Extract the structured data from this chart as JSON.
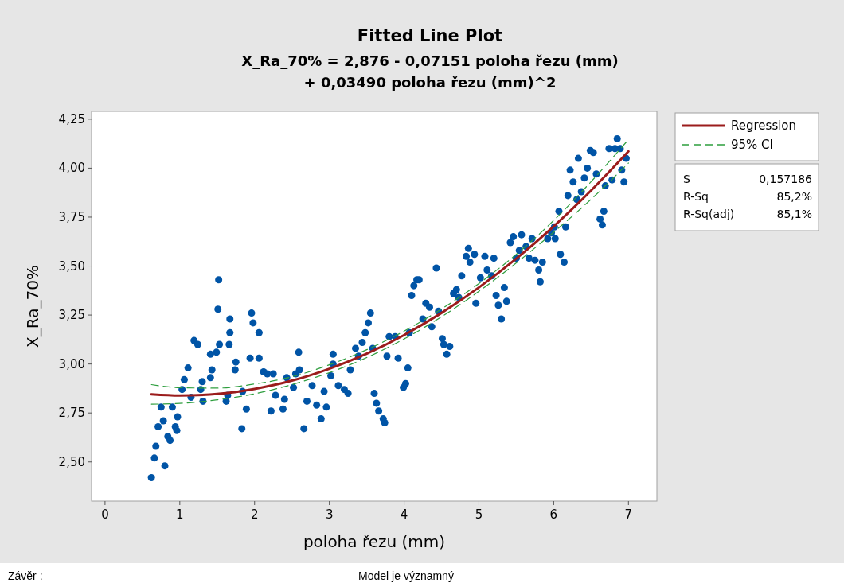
{
  "chart_data": {
    "type": "scatter",
    "title": "Fitted Line Plot",
    "subtitle": "X_Ra_70% = 2,876 - 0,07151 poloha řezu (mm)\n+ 0,03490 poloha řezu (mm)^2",
    "xlabel": "poloha řezu (mm)",
    "ylabel": "X_Ra_70%",
    "xlim": [
      -0.18,
      7.38
    ],
    "ylim": [
      2.3,
      4.29
    ],
    "xticks": [
      0,
      1,
      2,
      3,
      4,
      5,
      6,
      7
    ],
    "yticks": [
      {
        "value": 2.5,
        "label": "2,50"
      },
      {
        "value": 2.75,
        "label": "2,75"
      },
      {
        "value": 3,
        "label": "3,00"
      },
      {
        "value": 3.25,
        "label": "3,25"
      },
      {
        "value": 3.5,
        "label": "3,50"
      },
      {
        "value": 3.75,
        "label": "3,75"
      },
      {
        "value": 4,
        "label": "4,00"
      },
      {
        "value": 4.25,
        "label": "4,25"
      }
    ],
    "grid": false,
    "legend": "top right",
    "marker": "circle",
    "annotations": [
      "S",
      "0,157186",
      "R-Sq",
      "85,2%",
      "R-Sq(adj)",
      "85,1%",
      "Závěr :",
      "Model je významný"
    ],
    "series": [
      {
        "color": "#0054a6",
        "x": [
          0.62,
          0.66,
          0.68,
          0.8,
          0.71,
          0.78,
          0.75,
          0.84,
          0.87,
          0.9,
          0.94,
          0.96,
          0.97,
          1.03,
          1.06,
          1.11,
          1.19,
          1.24,
          1.15,
          1.28,
          1.31,
          1.3,
          1.41,
          1.43,
          1.41,
          1.49,
          1.51,
          1.52,
          1.53,
          1.66,
          1.67,
          1.67,
          1.62,
          1.64,
          1.74,
          1.75,
          1.84,
          1.83,
          1.89,
          1.94,
          1.96,
          1.98,
          2.06,
          2.06,
          2.12,
          2.17,
          2.22,
          2.25,
          2.28,
          2.38,
          2.4,
          2.43,
          2.52,
          2.55,
          2.59,
          2.6,
          2.66,
          2.7,
          2.77,
          2.83,
          2.89,
          2.93,
          2.96,
          3.02,
          3.05,
          3.05,
          3.12,
          3.2,
          3.25,
          3.28,
          3.35,
          3.39,
          3.44,
          3.48,
          3.52,
          3.55,
          3.58,
          3.6,
          3.63,
          3.66,
          3.72,
          3.74,
          3.77,
          3.8,
          3.88,
          3.92,
          3.99,
          4.02,
          4.05,
          4.07,
          4.1,
          4.13,
          4.17,
          4.2,
          4.25,
          4.29,
          4.34,
          4.37,
          4.43,
          4.46,
          4.51,
          4.53,
          4.57,
          4.61,
          4.66,
          4.7,
          4.73,
          4.77,
          4.83,
          4.86,
          4.88,
          4.94,
          4.96,
          5.02,
          5.08,
          5.11,
          5.17,
          5.2,
          5.23,
          5.26,
          5.3,
          5.34,
          5.37,
          5.42,
          5.46,
          5.5,
          5.54,
          5.57,
          5.63,
          5.67,
          5.71,
          5.75,
          5.8,
          5.82,
          5.85,
          5.92,
          5.97,
          6.01,
          6.02,
          6.07,
          6.09,
          6.14,
          6.16,
          6.19,
          6.22,
          6.26,
          6.31,
          6.33,
          6.37,
          6.41,
          6.45,
          6.49,
          6.53,
          6.57,
          6.62,
          6.65,
          6.67,
          6.69,
          6.74,
          6.78,
          6.82,
          6.85,
          6.89,
          6.91,
          6.94,
          6.97
        ],
        "values": [
          2.42,
          2.52,
          2.58,
          2.48,
          2.68,
          2.71,
          2.78,
          2.63,
          2.61,
          2.78,
          2.68,
          2.66,
          2.73,
          2.87,
          2.92,
          2.98,
          3.12,
          3.1,
          2.83,
          2.87,
          2.81,
          2.91,
          2.93,
          2.97,
          3.05,
          3.06,
          3.28,
          3.43,
          3.1,
          3.1,
          3.16,
          3.23,
          2.81,
          2.84,
          2.97,
          3.01,
          2.86,
          2.67,
          2.77,
          3.03,
          3.26,
          3.21,
          3.16,
          3.03,
          2.96,
          2.95,
          2.76,
          2.95,
          2.84,
          2.77,
          2.82,
          2.93,
          2.88,
          2.95,
          3.06,
          2.97,
          2.67,
          2.81,
          2.89,
          2.79,
          2.72,
          2.86,
          2.78,
          2.94,
          3.0,
          3.05,
          2.89,
          2.87,
          2.85,
          2.97,
          3.08,
          3.04,
          3.11,
          3.16,
          3.21,
          3.26,
          3.08,
          2.85,
          2.8,
          2.76,
          2.72,
          2.7,
          3.04,
          3.14,
          3.14,
          3.03,
          2.88,
          2.9,
          2.98,
          3.16,
          3.35,
          3.4,
          3.43,
          3.43,
          3.23,
          3.31,
          3.29,
          3.19,
          3.49,
          3.27,
          3.13,
          3.1,
          3.05,
          3.09,
          3.36,
          3.38,
          3.34,
          3.45,
          3.55,
          3.59,
          3.52,
          3.56,
          3.31,
          3.44,
          3.55,
          3.48,
          3.45,
          3.54,
          3.35,
          3.3,
          3.23,
          3.39,
          3.32,
          3.62,
          3.65,
          3.54,
          3.58,
          3.66,
          3.6,
          3.54,
          3.64,
          3.53,
          3.48,
          3.42,
          3.52,
          3.64,
          3.67,
          3.7,
          3.64,
          3.78,
          3.56,
          3.52,
          3.7,
          3.86,
          3.99,
          3.93,
          3.84,
          4.05,
          3.88,
          3.95,
          4.0,
          4.09,
          4.08,
          3.97,
          3.74,
          3.71,
          3.78,
          3.91,
          4.1,
          3.94,
          4.1,
          4.15,
          4.1,
          3.99,
          3.93,
          4.05
        ]
      },
      {
        "type": "line",
        "name": "Regression",
        "color": "#9b1c1c",
        "marker": "none",
        "line_style": "solid",
        "x": [
          0.62,
          1,
          1.5,
          2,
          2.5,
          3,
          3.5,
          4,
          4.5,
          5,
          5.5,
          6,
          6.5,
          7
        ],
        "values": [
          2.845,
          2.839,
          2.847,
          2.873,
          2.915,
          2.976,
          3.053,
          3.148,
          3.261,
          3.391,
          3.538,
          3.703,
          3.886,
          4.086
        ]
      },
      {
        "type": "line",
        "name": "95% CI",
        "color": "#2e9e3e",
        "marker": "none",
        "line_style": "dashed",
        "x": [
          0.62,
          1,
          1.5,
          2,
          2.5,
          3,
          3.5,
          4,
          4.5,
          5,
          5.5,
          6,
          6.5,
          7
        ],
        "values": [
          2.895,
          2.879,
          2.877,
          2.898,
          2.935,
          2.996,
          3.073,
          3.168,
          3.281,
          3.411,
          3.56,
          3.733,
          3.931,
          4.146
        ]
      },
      {
        "type": "line",
        "color": "#2e9e3e",
        "marker": "none",
        "line_style": "dashed",
        "x": [
          0.62,
          1,
          1.5,
          2,
          2.5,
          3,
          3.5,
          4,
          4.5,
          5,
          5.5,
          6,
          6.5,
          7
        ],
        "values": [
          2.795,
          2.799,
          2.817,
          2.848,
          2.895,
          2.956,
          3.033,
          3.128,
          3.241,
          3.371,
          3.516,
          3.673,
          3.841,
          4.026
        ]
      }
    ]
  }
}
